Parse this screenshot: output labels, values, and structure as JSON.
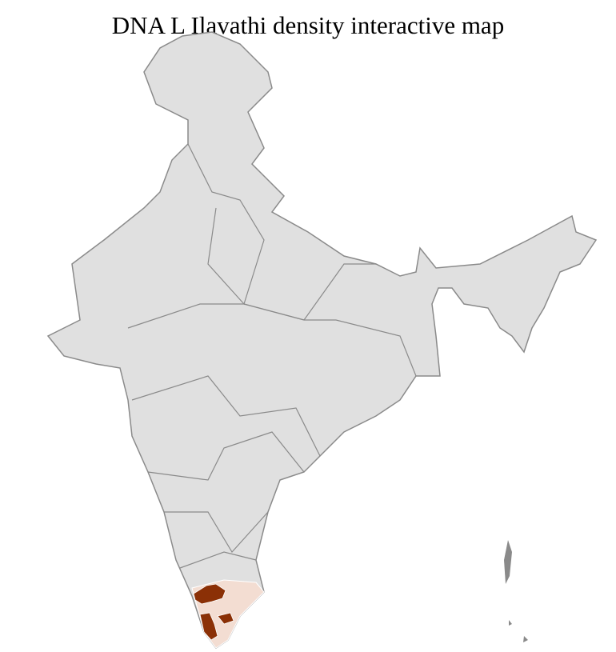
{
  "title": "DNA L Ilavathi density interactive map",
  "map": {
    "type": "choropleth",
    "region": "India",
    "colors": {
      "no_data": "#e0e0e0",
      "district_border": "#ffffff",
      "state_border": "#8a8a8a",
      "low_density": "#f3ddd2",
      "high_density": "#8b3006"
    },
    "legend": "none"
  }
}
